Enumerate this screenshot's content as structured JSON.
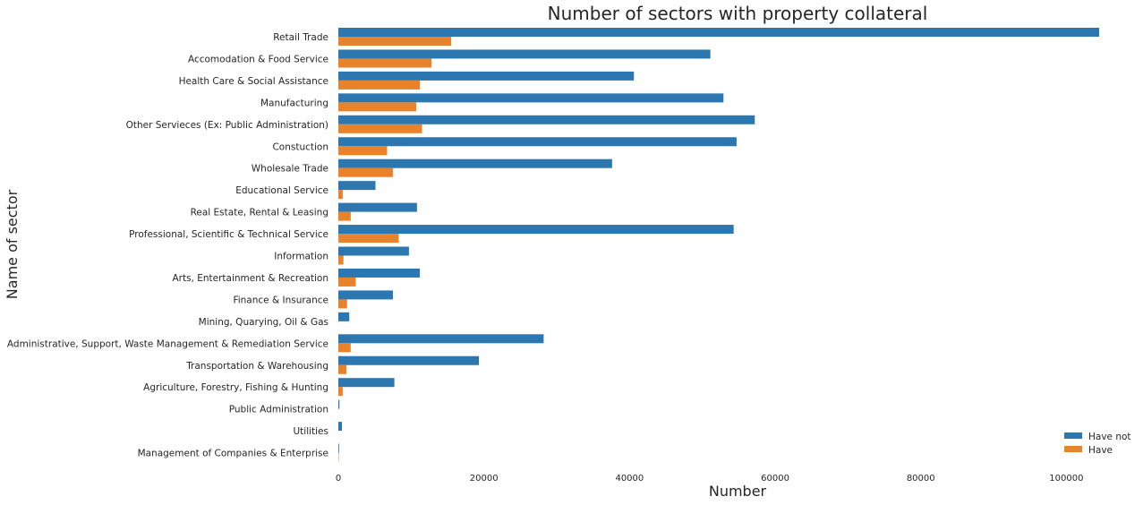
{
  "chart_data": {
    "type": "bar",
    "orientation": "horizontal",
    "title": "Number of sectors with property collateral",
    "xlabel": "Number",
    "ylabel": "Name of sector",
    "xlim": [
      0,
      106000
    ],
    "xticks": [
      0,
      20000,
      40000,
      60000,
      80000,
      100000
    ],
    "xtick_labels": [
      "0",
      "20000",
      "40000",
      "60000",
      "80000",
      "100000"
    ],
    "grid": false,
    "legend_position": "bottom-right",
    "categories": [
      "Retail Trade",
      "Accomodation & Food Service",
      "Health Care & Social Assistance",
      "Manufacturing",
      "Other Servieces (Ex: Public Administration)",
      "Constuction",
      "Wholesale Trade",
      "Educational Service",
      "Real Estate, Rental & Leasing",
      "Professional, Scientific & Technical Service",
      "Information",
      "Arts, Entertainment & Recreation",
      "Finance & Insurance",
      "Mining, Quarying, Oil & Gas",
      "Administrative, Support, Waste Management & Remediation Service",
      "Transportation & Warehousing",
      "Agriculture, Forestry, Fishing & Hunting",
      "Public Administration",
      "Utilities",
      "Management of Companies & Enterprise"
    ],
    "series": [
      {
        "name": "Have not",
        "color": "#2c77b0",
        "values": [
          104500,
          51100,
          40600,
          52900,
          57200,
          54700,
          37600,
          5100,
          10800,
          54300,
          9700,
          11200,
          7500,
          1500,
          28200,
          19300,
          7700,
          150,
          500,
          100
        ]
      },
      {
        "name": "Have",
        "color": "#e8822b",
        "values": [
          15500,
          12800,
          11200,
          10700,
          11500,
          6700,
          7500,
          600,
          1700,
          8300,
          700,
          2400,
          1200,
          0,
          1700,
          1100,
          600,
          0,
          0,
          50
        ]
      }
    ]
  }
}
